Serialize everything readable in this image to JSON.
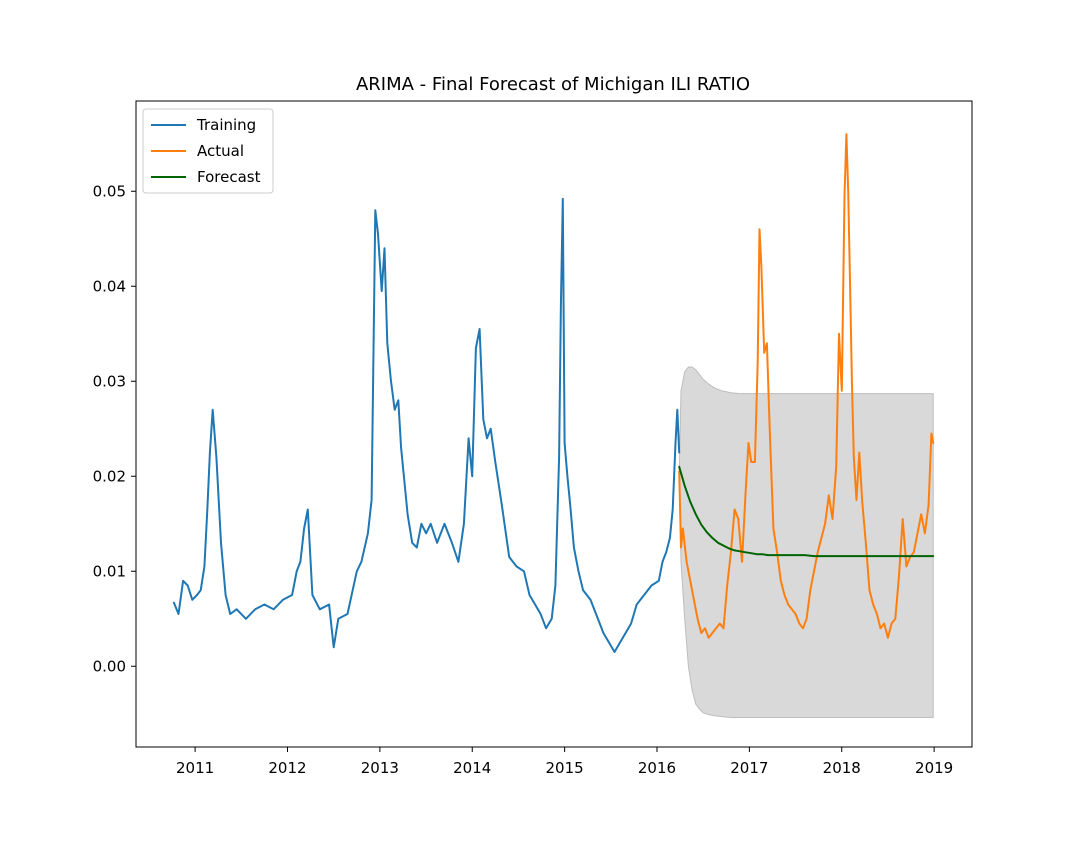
{
  "chart_data": {
    "type": "line",
    "title": "ARIMA - Final Forecast of Michigan ILI RATIO",
    "xlabel": "",
    "ylabel": "",
    "xlim": [
      2010.36,
      2019.41
    ],
    "ylim": [
      -0.0085,
      0.0595
    ],
    "x_ticks": [
      2011,
      2012,
      2013,
      2014,
      2015,
      2016,
      2017,
      2018,
      2019
    ],
    "x_tick_labels": [
      "2011",
      "2012",
      "2013",
      "2014",
      "2015",
      "2016",
      "2017",
      "2018",
      "2019"
    ],
    "y_ticks": [
      0.0,
      0.01,
      0.02,
      0.03,
      0.04,
      0.05
    ],
    "y_tick_labels": [
      "0.00",
      "0.01",
      "0.02",
      "0.03",
      "0.04",
      "0.05"
    ],
    "grid": false,
    "legend_position": "upper-left",
    "legend": [
      "Training",
      "Actual",
      "Forecast"
    ],
    "series": [
      {
        "name": "Training",
        "color": "#1f77b4",
        "x": [
          2010.77,
          2010.82,
          2010.87,
          2010.92,
          2010.97,
          2011.02,
          2011.06,
          2011.1,
          2011.13,
          2011.16,
          2011.19,
          2011.23,
          2011.28,
          2011.33,
          2011.38,
          2011.45,
          2011.55,
          2011.65,
          2011.75,
          2011.85,
          2011.95,
          2012.05,
          2012.1,
          2012.14,
          2012.18,
          2012.22,
          2012.27,
          2012.35,
          2012.45,
          2012.5,
          2012.55,
          2012.65,
          2012.75,
          2012.8,
          2012.87,
          2012.91,
          2012.95,
          2012.98,
          2013.02,
          2013.05,
          2013.08,
          2013.12,
          2013.16,
          2013.2,
          2013.23,
          2013.26,
          2013.3,
          2013.35,
          2013.4,
          2013.45,
          2013.5,
          2013.55,
          2013.62,
          2013.7,
          2013.78,
          2013.85,
          2013.91,
          2013.96,
          2014.0,
          2014.04,
          2014.08,
          2014.12,
          2014.16,
          2014.2,
          2014.25,
          2014.32,
          2014.4,
          2014.48,
          2014.56,
          2014.62,
          2014.68,
          2014.74,
          2014.8,
          2014.86,
          2014.9,
          2014.94,
          2014.96,
          2014.98,
          2015.0,
          2015.03,
          2015.06,
          2015.1,
          2015.15,
          2015.2,
          2015.28,
          2015.36,
          2015.42,
          2015.48,
          2015.54,
          2015.6,
          2015.66,
          2015.72,
          2015.78,
          2015.86,
          2015.94,
          2016.02,
          2016.06,
          2016.1,
          2016.14,
          2016.17,
          2016.2,
          2016.22,
          2016.24
        ],
        "values": [
          0.0067,
          0.0055,
          0.009,
          0.0085,
          0.007,
          0.0075,
          0.008,
          0.0105,
          0.016,
          0.0225,
          0.027,
          0.022,
          0.013,
          0.0075,
          0.0055,
          0.006,
          0.005,
          0.006,
          0.0065,
          0.006,
          0.007,
          0.0075,
          0.01,
          0.011,
          0.0145,
          0.0165,
          0.0075,
          0.006,
          0.0065,
          0.002,
          0.005,
          0.0055,
          0.01,
          0.011,
          0.014,
          0.0175,
          0.048,
          0.0455,
          0.0395,
          0.044,
          0.034,
          0.03,
          0.027,
          0.028,
          0.023,
          0.02,
          0.016,
          0.013,
          0.0125,
          0.015,
          0.014,
          0.015,
          0.013,
          0.015,
          0.013,
          0.011,
          0.015,
          0.024,
          0.02,
          0.0335,
          0.0355,
          0.026,
          0.024,
          0.025,
          0.0215,
          0.017,
          0.0115,
          0.0105,
          0.01,
          0.0075,
          0.0065,
          0.0055,
          0.004,
          0.005,
          0.0085,
          0.022,
          0.038,
          0.0492,
          0.0235,
          0.02,
          0.017,
          0.0125,
          0.01,
          0.008,
          0.007,
          0.005,
          0.0035,
          0.0025,
          0.0015,
          0.0025,
          0.0035,
          0.0045,
          0.0065,
          0.0075,
          0.0085,
          0.009,
          0.011,
          0.012,
          0.0135,
          0.0165,
          0.0235,
          0.027,
          0.0225
        ],
        "values_note": ""
      },
      {
        "name": "Actual",
        "color": "#ff7f0e",
        "x": [
          2016.24,
          2016.26,
          2016.28,
          2016.32,
          2016.36,
          2016.4,
          2016.44,
          2016.48,
          2016.52,
          2016.56,
          2016.6,
          2016.64,
          2016.68,
          2016.72,
          2016.76,
          2016.8,
          2016.84,
          2016.88,
          2016.92,
          2016.96,
          2016.99,
          2017.02,
          2017.06,
          2017.09,
          2017.11,
          2017.13,
          2017.16,
          2017.19,
          2017.22,
          2017.26,
          2017.3,
          2017.34,
          2017.38,
          2017.42,
          2017.46,
          2017.5,
          2017.54,
          2017.58,
          2017.62,
          2017.66,
          2017.7,
          2017.74,
          2017.78,
          2017.82,
          2017.86,
          2017.9,
          2017.94,
          2017.97,
          2018.0,
          2018.03,
          2018.05,
          2018.07,
          2018.09,
          2018.11,
          2018.13,
          2018.16,
          2018.19,
          2018.22,
          2018.26,
          2018.3,
          2018.34,
          2018.38,
          2018.42,
          2018.46,
          2018.5,
          2018.54,
          2018.58,
          2018.62,
          2018.66,
          2018.7,
          2018.74,
          2018.78,
          2018.82,
          2018.86,
          2018.9,
          2018.94,
          2018.97,
          2018.99
        ],
        "values": [
          0.0205,
          0.0125,
          0.0145,
          0.011,
          0.009,
          0.007,
          0.005,
          0.0035,
          0.004,
          0.003,
          0.0035,
          0.004,
          0.0045,
          0.004,
          0.0085,
          0.012,
          0.0165,
          0.0155,
          0.011,
          0.0185,
          0.0235,
          0.0215,
          0.0215,
          0.032,
          0.046,
          0.042,
          0.033,
          0.034,
          0.025,
          0.0145,
          0.012,
          0.009,
          0.0075,
          0.0065,
          0.006,
          0.0055,
          0.0045,
          0.004,
          0.005,
          0.008,
          0.01,
          0.012,
          0.0135,
          0.015,
          0.018,
          0.0155,
          0.021,
          0.035,
          0.029,
          0.0495,
          0.056,
          0.05,
          0.04,
          0.03,
          0.022,
          0.0175,
          0.0225,
          0.0175,
          0.013,
          0.008,
          0.0065,
          0.0055,
          0.004,
          0.0045,
          0.003,
          0.0045,
          0.005,
          0.0095,
          0.0155,
          0.0105,
          0.0115,
          0.012,
          0.014,
          0.016,
          0.014,
          0.017,
          0.0245,
          0.0235
        ]
      },
      {
        "name": "Forecast",
        "color": "#006400",
        "x": [
          2016.24,
          2016.3,
          2016.36,
          2016.42,
          2016.48,
          2016.54,
          2016.6,
          2016.66,
          2016.72,
          2016.78,
          2016.84,
          2016.9,
          2016.96,
          2017.02,
          2017.08,
          2017.14,
          2017.2,
          2017.26,
          2017.32,
          2017.4,
          2017.5,
          2017.6,
          2017.7,
          2017.8,
          2017.9,
          2018.0,
          2018.2,
          2018.4,
          2018.6,
          2018.8,
          2018.99
        ],
        "values": [
          0.021,
          0.019,
          0.0173,
          0.016,
          0.0149,
          0.0141,
          0.0135,
          0.013,
          0.0127,
          0.0124,
          0.0122,
          0.0121,
          0.012,
          0.0119,
          0.0118,
          0.0118,
          0.0117,
          0.0117,
          0.0117,
          0.0117,
          0.0117,
          0.0117,
          0.0116,
          0.0116,
          0.0116,
          0.0116,
          0.0116,
          0.0116,
          0.0116,
          0.0116,
          0.0116
        ]
      }
    ],
    "confidence_band": {
      "color": "#d9d9d9",
      "x": [
        2016.24,
        2016.26,
        2016.3,
        2016.34,
        2016.38,
        2016.42,
        2016.46,
        2016.5,
        2016.56,
        2016.62,
        2016.7,
        2016.8,
        2016.9,
        2017.0,
        2017.2,
        2017.5,
        2018.0,
        2018.5,
        2018.99
      ],
      "upper": [
        0.02,
        0.029,
        0.031,
        0.0315,
        0.0315,
        0.0312,
        0.0307,
        0.0302,
        0.0297,
        0.0293,
        0.029,
        0.0288,
        0.0287,
        0.0287,
        0.0287,
        0.0287,
        0.0287,
        0.0287,
        0.0287
      ],
      "lower": [
        0.02,
        0.011,
        0.005,
        0.0,
        -0.0025,
        -0.004,
        -0.0045,
        -0.0049,
        -0.0051,
        -0.0052,
        -0.0053,
        -0.0054,
        -0.0054,
        -0.0054,
        -0.0054,
        -0.0054,
        -0.0054,
        -0.0054,
        -0.0054
      ]
    }
  }
}
